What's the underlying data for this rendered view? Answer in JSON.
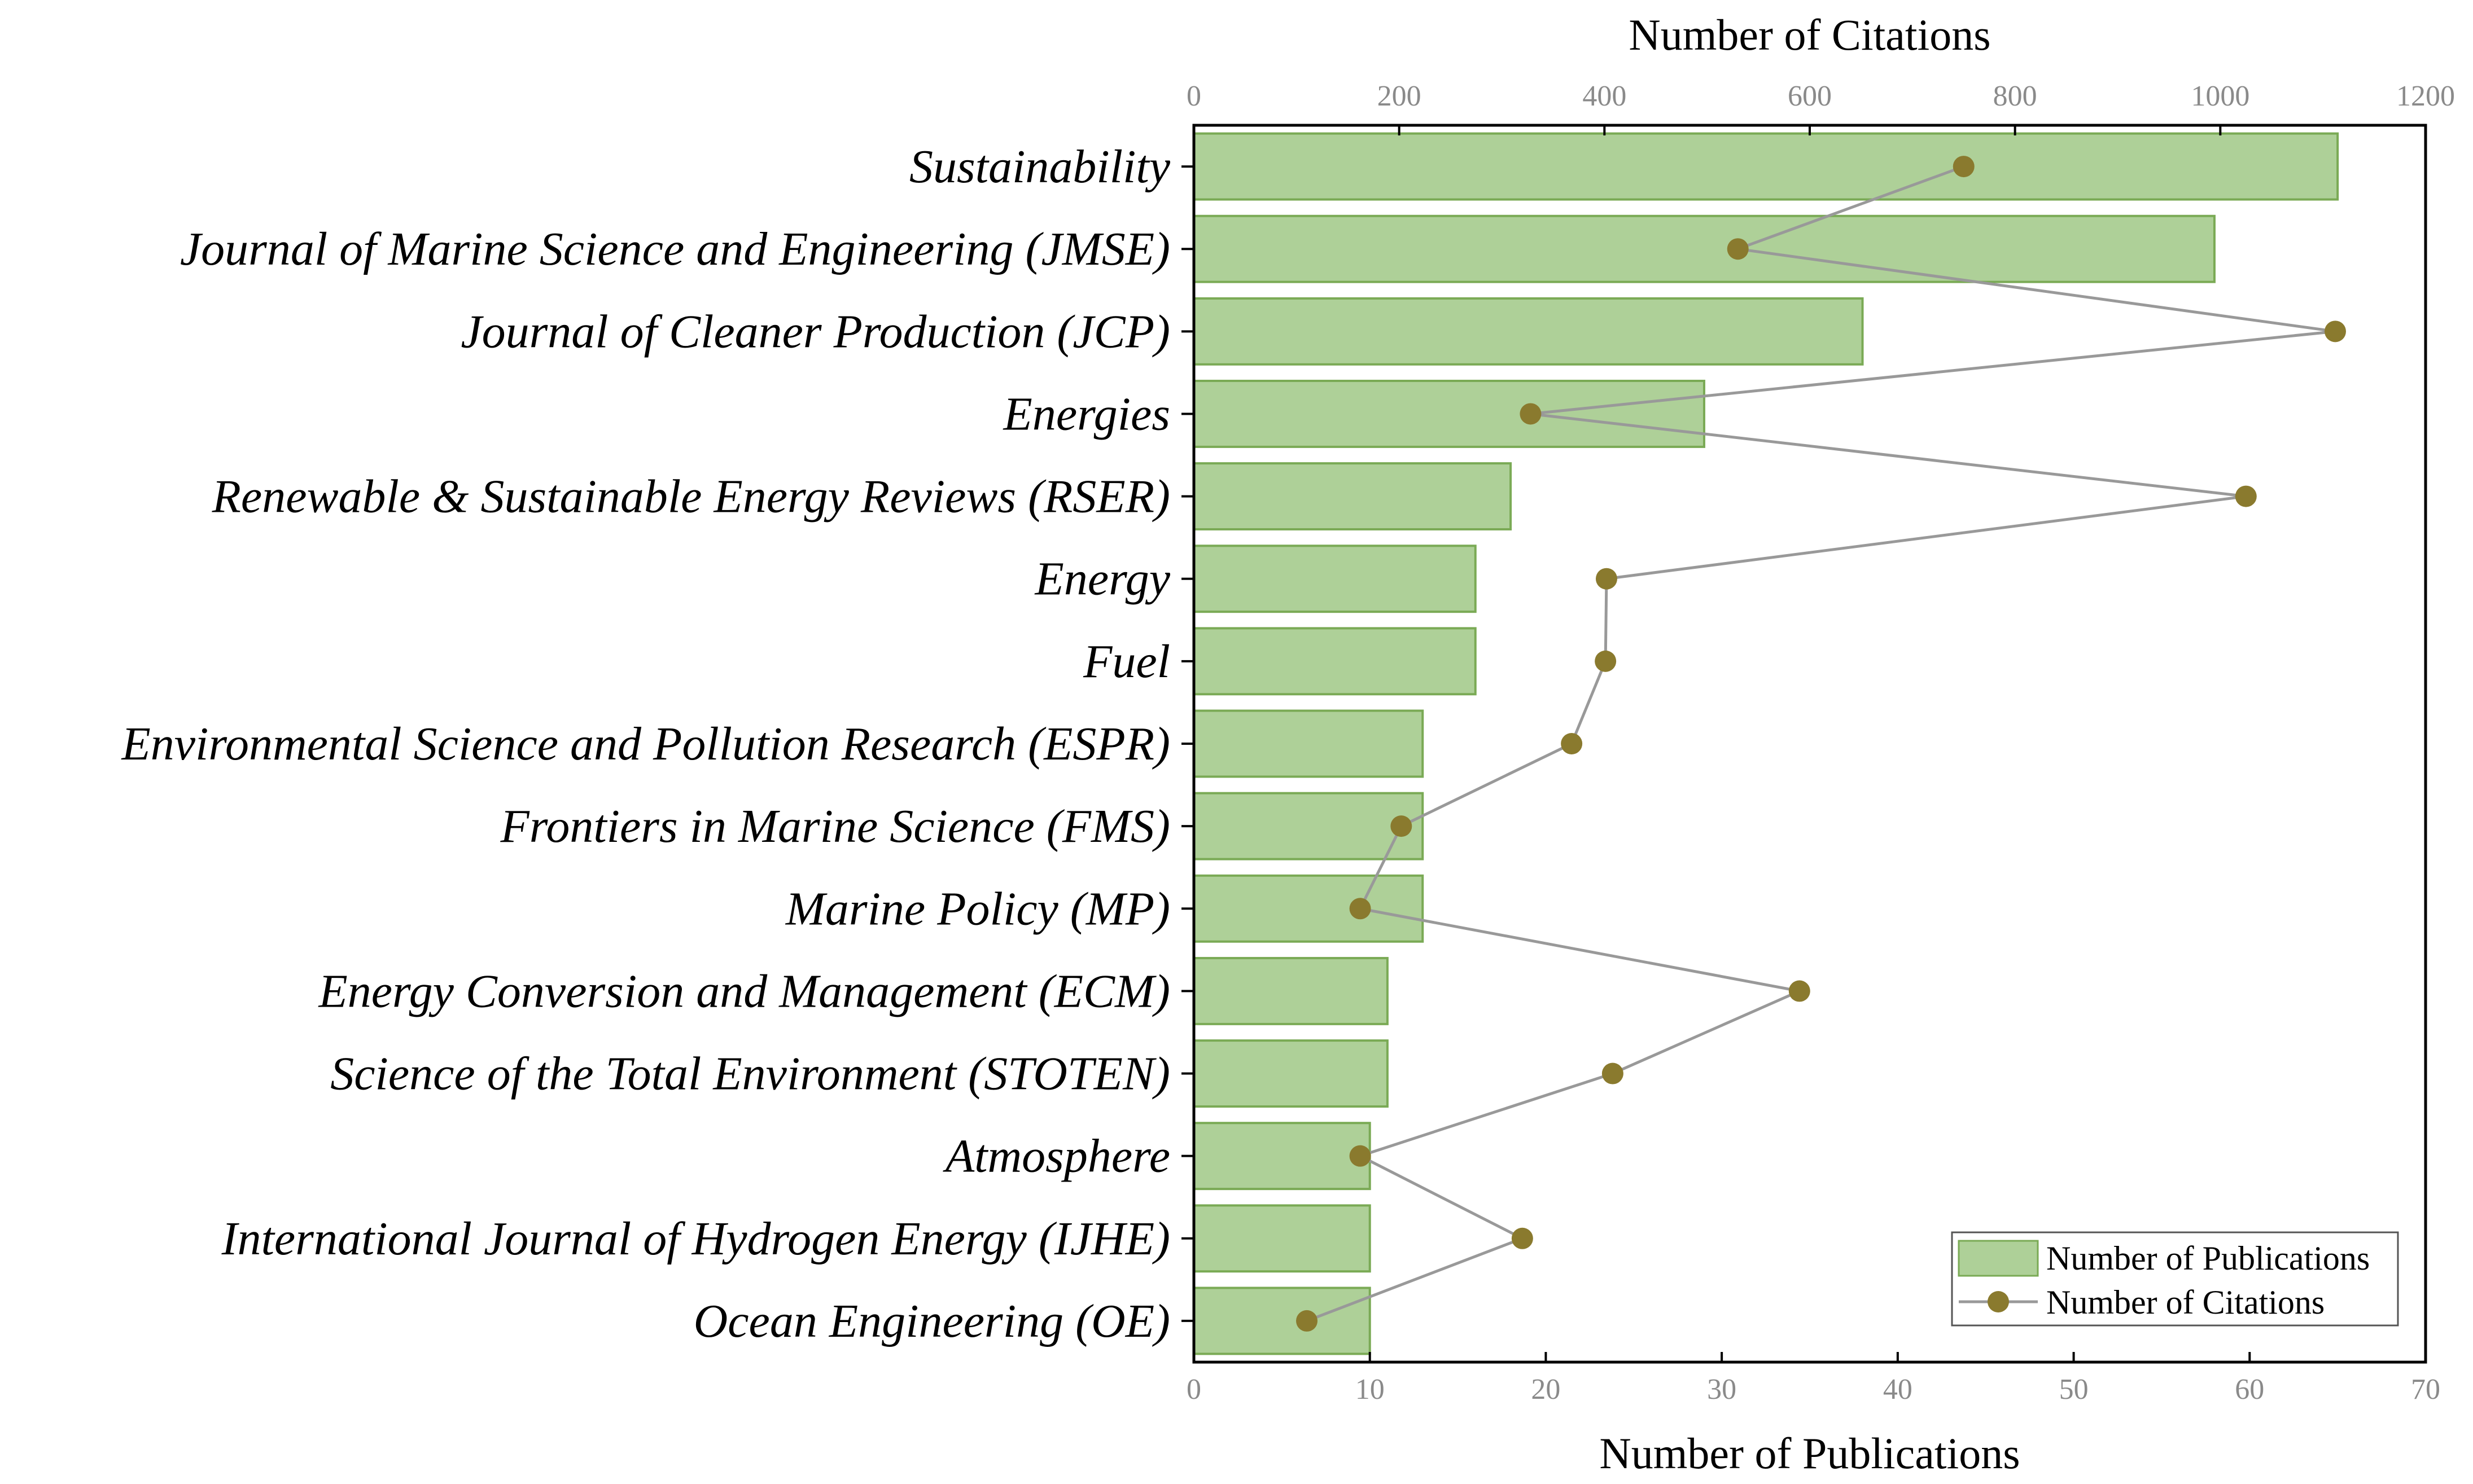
{
  "chart_data": {
    "type": "bar",
    "orientation": "horizontal",
    "categories": [
      "Sustainability",
      "Journal of Marine Science and Engineering (JMSE)",
      "Journal of Cleaner Production (JCP)",
      "Energies",
      "Renewable & Sustainable Energy Reviews (RSER)",
      "Energy",
      "Fuel",
      "Environmental Science and Pollution Research (ESPR)",
      "Frontiers in Marine Science (FMS)",
      "Marine Policy (MP)",
      "Energy Conversion and Management (ECM)",
      "Science of the Total Environment (STOTEN)",
      "Atmosphere",
      "International Journal of Hydrogen Energy (IJHE)",
      "Ocean Engineering (OE)"
    ],
    "series": [
      {
        "name": "Number of Publications",
        "type": "bar",
        "axis": "bottom",
        "color": "#aed098",
        "edge_color": "#7aaa55",
        "values": [
          65,
          58,
          38,
          29,
          18,
          16,
          16,
          13,
          13,
          13,
          11,
          11,
          10,
          10,
          10
        ]
      },
      {
        "name": "Number of Citations",
        "type": "line",
        "axis": "top",
        "color": "#8a7a2e",
        "line_color": "#999999",
        "values": [
          750,
          530,
          1112,
          328,
          1025,
          402,
          401,
          368,
          202,
          162,
          590,
          408,
          162,
          320,
          110
        ]
      }
    ],
    "x_bottom": {
      "label": "Number of Publications",
      "range": [
        0,
        70
      ],
      "ticks": [
        "0",
        "10",
        "20",
        "30",
        "40",
        "50",
        "60",
        "70"
      ]
    },
    "x_top": {
      "label": "Number of Citations",
      "range": [
        0,
        1200
      ],
      "ticks": [
        "0",
        "200",
        "400",
        "600",
        "800",
        "1000",
        "1200"
      ]
    },
    "legend": {
      "position": "bottom-right",
      "items": [
        "Number of Publications",
        "Number of Citations"
      ]
    },
    "grid": false
  }
}
